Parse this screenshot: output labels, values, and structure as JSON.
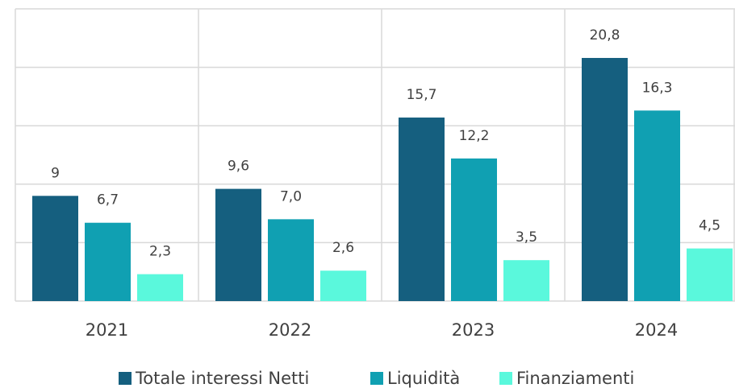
{
  "chart_data": {
    "type": "bar",
    "categories": [
      "2021",
      "2022",
      "2023",
      "2024"
    ],
    "series": [
      {
        "name": "Totale interessi Netti",
        "color": "#155f7f",
        "values": [
          9,
          9.6,
          15.7,
          20.8
        ],
        "value_labels": [
          "9",
          "9,6",
          "15,7",
          "20,8"
        ]
      },
      {
        "name": "Liquidità",
        "color": "#10a0b2",
        "values": [
          6.7,
          7.0,
          12.2,
          16.3
        ],
        "value_labels": [
          "6,7",
          "7,0",
          "12,2",
          "16,3"
        ]
      },
      {
        "name": "Finanziamenti",
        "color": "#5af8dc",
        "values": [
          2.3,
          2.6,
          3.5,
          4.5
        ],
        "value_labels": [
          "2,3",
          "2,6",
          "3,5",
          "4,5"
        ]
      }
    ],
    "ylim": [
      0,
      25
    ],
    "yticks": [
      0,
      5,
      10,
      15,
      20,
      25
    ],
    "grid": true,
    "legend": "bottom"
  }
}
